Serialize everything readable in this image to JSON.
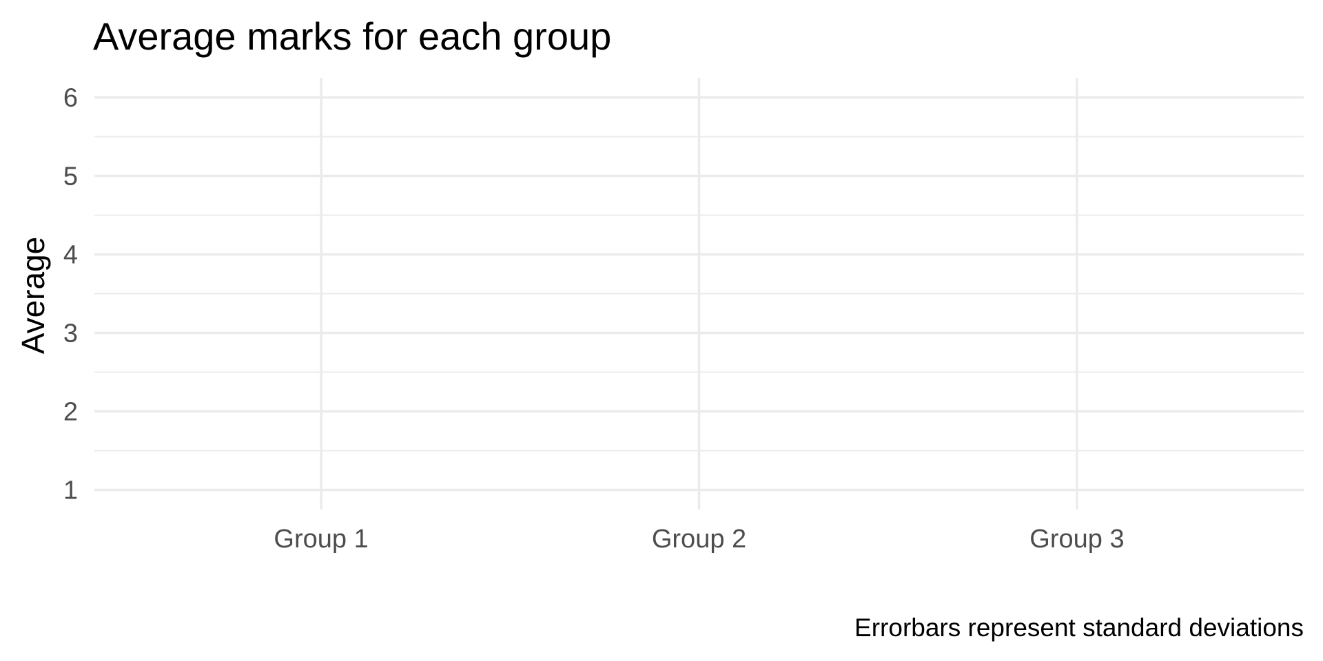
{
  "chart_data": {
    "type": "errorbar",
    "title": "Average marks for each group",
    "y_label": "Average",
    "caption": "Errorbars represent standard deviations",
    "categories": [
      "Group 1",
      "Group 2",
      "Group 3"
    ],
    "ylim": [
      0.75,
      6.25
    ],
    "yticks": [
      1,
      2,
      3,
      4,
      5,
      6
    ],
    "y_minor_ticks": [
      1.5,
      2.5,
      3.5,
      4.5,
      5.5
    ],
    "grid": true
  }
}
